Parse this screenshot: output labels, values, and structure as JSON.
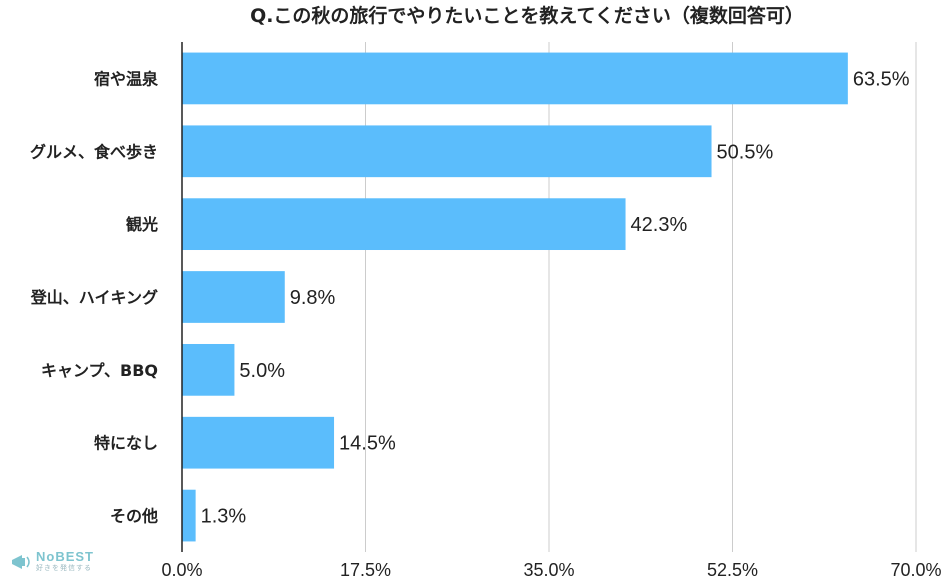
{
  "chart_data": {
    "type": "bar",
    "orientation": "horizontal",
    "title": "Q.この秋の旅行でやりたいことを教えてください（複数回答可）",
    "categories": [
      "宿や温泉",
      "グルメ、食べ歩き",
      "観光",
      "登山、ハイキング",
      "キャンプ、BBQ",
      "特になし",
      "その他"
    ],
    "values": [
      63.5,
      50.5,
      42.3,
      9.8,
      5.0,
      14.5,
      1.3
    ],
    "value_labels": [
      "63.5%",
      "50.5%",
      "42.3%",
      "9.8%",
      "5.0%",
      "14.5%",
      "1.3%"
    ],
    "xlim": [
      0,
      70
    ],
    "xticks": [
      0,
      17.5,
      35,
      52.5,
      70
    ],
    "xtick_labels": [
      "0.0%",
      "17.5%",
      "35.0%",
      "52.5%",
      "70.0%"
    ],
    "xlabel": "",
    "ylabel": "",
    "grid": true,
    "legend": "none",
    "bar_color": "#5bbdfc",
    "grid_color": "#cccccc",
    "axis_color": "#222222"
  },
  "logo": {
    "name": "NoBEST",
    "tagline": "好きを発信する",
    "color": "#7ec4cf"
  }
}
